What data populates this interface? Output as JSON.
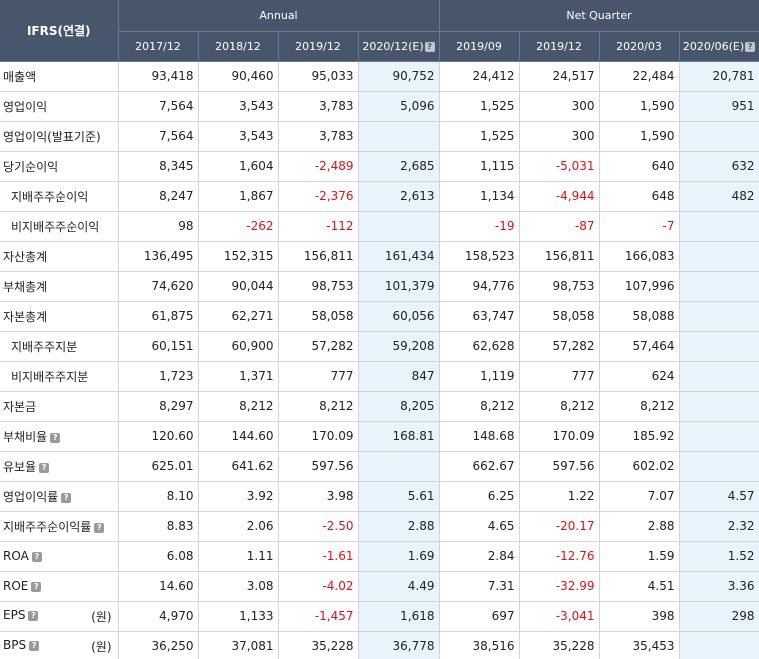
{
  "header": {
    "ifrs": "IFRS(연결)",
    "annual": "Annual",
    "quarter": "Net Quarter",
    "periods": [
      "2017/12",
      "2018/12",
      "2019/12",
      "2020/12(E)",
      "2019/09",
      "2019/12",
      "2020/03",
      "2020/06(E)"
    ],
    "help_glyph": "?"
  },
  "rows": [
    {
      "label": "매출액",
      "values": [
        "93,418",
        "90,460",
        "95,033",
        "90,752",
        "24,412",
        "24,517",
        "22,484",
        "20,781"
      ]
    },
    {
      "label": "영업이익",
      "values": [
        "7,564",
        "3,543",
        "3,783",
        "5,096",
        "1,525",
        "300",
        "1,590",
        "951"
      ]
    },
    {
      "label": "영업이익(발표기준)",
      "values": [
        "7,564",
        "3,543",
        "3,783",
        "",
        "1,525",
        "300",
        "1,590",
        ""
      ]
    },
    {
      "label": "당기순이익",
      "values": [
        "8,345",
        "1,604",
        "-2,489",
        "2,685",
        "1,115",
        "-5,031",
        "640",
        "632"
      ]
    },
    {
      "label": "지배주주순이익",
      "values": [
        "8,247",
        "1,867",
        "-2,376",
        "2,613",
        "1,134",
        "-4,944",
        "648",
        "482"
      ]
    },
    {
      "label": "비지배주주순이익",
      "values": [
        "98",
        "-262",
        "-112",
        "",
        "-19",
        "-87",
        "-7",
        ""
      ]
    },
    {
      "label": "자산총계",
      "values": [
        "136,495",
        "152,315",
        "156,811",
        "161,434",
        "158,523",
        "156,811",
        "166,083",
        ""
      ]
    },
    {
      "label": "부채총계",
      "values": [
        "74,620",
        "90,044",
        "98,753",
        "101,379",
        "94,776",
        "98,753",
        "107,996",
        ""
      ]
    },
    {
      "label": "자본총계",
      "values": [
        "61,875",
        "62,271",
        "58,058",
        "60,056",
        "63,747",
        "58,058",
        "58,088",
        ""
      ]
    },
    {
      "label": "지배주주지분",
      "values": [
        "60,151",
        "60,900",
        "57,282",
        "59,208",
        "62,628",
        "57,282",
        "57,464",
        ""
      ]
    },
    {
      "label": "비지배주주지분",
      "values": [
        "1,723",
        "1,371",
        "777",
        "847",
        "1,119",
        "777",
        "624",
        ""
      ]
    },
    {
      "label": "자본금",
      "values": [
        "8,297",
        "8,212",
        "8,212",
        "8,205",
        "8,212",
        "8,212",
        "8,212",
        ""
      ]
    },
    {
      "label": "부채비율",
      "values": [
        "120.60",
        "144.60",
        "170.09",
        "168.81",
        "148.68",
        "170.09",
        "185.92",
        ""
      ]
    },
    {
      "label": "유보율",
      "values": [
        "625.01",
        "641.62",
        "597.56",
        "",
        "662.67",
        "597.56",
        "602.02",
        ""
      ]
    },
    {
      "label": "영업이익률",
      "values": [
        "8.10",
        "3.92",
        "3.98",
        "5.61",
        "6.25",
        "1.22",
        "7.07",
        "4.57"
      ]
    },
    {
      "label": "지배주주순이익률",
      "values": [
        "8.83",
        "2.06",
        "-2.50",
        "2.88",
        "4.65",
        "-20.17",
        "2.88",
        "2.32"
      ]
    },
    {
      "label": "ROA",
      "values": [
        "6.08",
        "1.11",
        "-1.61",
        "1.69",
        "2.84",
        "-12.76",
        "1.59",
        "1.52"
      ]
    },
    {
      "label": "ROE",
      "values": [
        "14.60",
        "3.08",
        "-4.02",
        "4.49",
        "7.31",
        "-32.99",
        "4.51",
        "3.36"
      ]
    },
    {
      "label": "EPS",
      "unit": "(원)",
      "values": [
        "4,970",
        "1,133",
        "-1,457",
        "1,618",
        "697",
        "-3,041",
        "398",
        "298"
      ]
    },
    {
      "label": "BPS",
      "unit": "(원)",
      "values": [
        "36,250",
        "37,081",
        "35,228",
        "36,778",
        "38,516",
        "35,228",
        "35,453",
        ""
      ]
    }
  ]
}
